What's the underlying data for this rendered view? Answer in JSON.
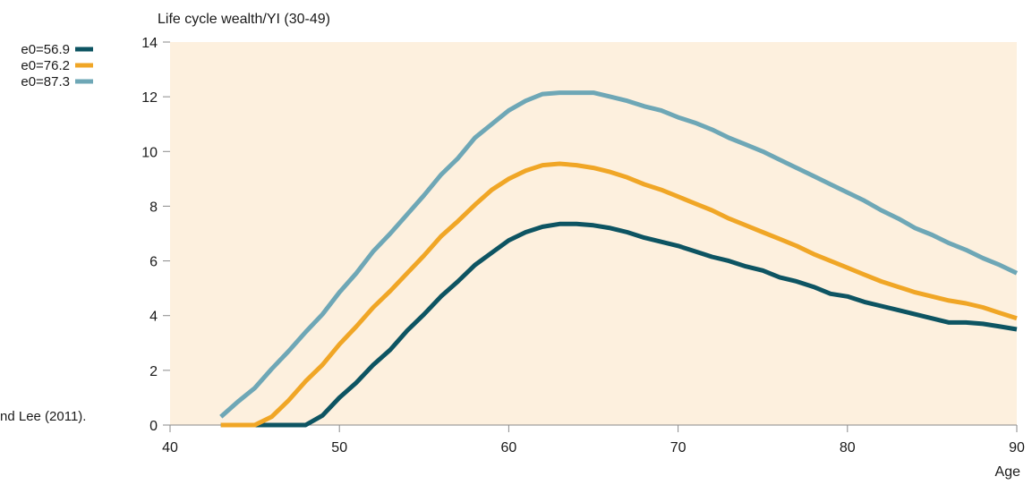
{
  "chart_data": {
    "type": "line",
    "ylabel": "Life cycle wealth/YI (30-49)",
    "xlabel": "Age",
    "xlim": [
      40,
      90
    ],
    "ylim": [
      0,
      14
    ],
    "xticks": [
      40,
      50,
      60,
      70,
      80,
      90
    ],
    "yticks": [
      0,
      2,
      4,
      6,
      8,
      10,
      12,
      14
    ],
    "plot_background": "#fdf0de",
    "legend_position": "top-left, outside plot",
    "note_fragment": "nd Lee (2011).",
    "series": [
      {
        "name": "e0=56.9",
        "color": "#0d5462",
        "x": [
          43,
          44,
          45,
          46,
          47,
          48,
          49,
          50,
          51,
          52,
          53,
          54,
          55,
          56,
          57,
          58,
          59,
          60,
          61,
          62,
          63,
          64,
          65,
          66,
          67,
          68,
          69,
          70,
          71,
          72,
          73,
          74,
          75,
          76,
          77,
          78,
          79,
          80,
          81,
          82,
          83,
          84,
          85,
          86,
          87,
          88,
          89,
          90
        ],
        "y": [
          0,
          0,
          0,
          0,
          0,
          0,
          0.35,
          1.0,
          1.55,
          2.2,
          2.75,
          3.45,
          4.05,
          4.7,
          5.25,
          5.85,
          6.3,
          6.75,
          7.05,
          7.25,
          7.35,
          7.35,
          7.3,
          7.2,
          7.05,
          6.85,
          6.7,
          6.55,
          6.35,
          6.15,
          6.0,
          5.8,
          5.65,
          5.4,
          5.25,
          5.05,
          4.8,
          4.7,
          4.5,
          4.35,
          4.2,
          4.05,
          3.9,
          3.75,
          3.75,
          3.7,
          3.6,
          3.5
        ]
      },
      {
        "name": "e0=76.2",
        "color": "#f0a626",
        "x": [
          43,
          44,
          45,
          46,
          47,
          48,
          49,
          50,
          51,
          52,
          53,
          54,
          55,
          56,
          57,
          58,
          59,
          60,
          61,
          62,
          63,
          64,
          65,
          66,
          67,
          68,
          69,
          70,
          71,
          72,
          73,
          74,
          75,
          76,
          77,
          78,
          79,
          80,
          81,
          82,
          83,
          84,
          85,
          86,
          87,
          88,
          89,
          90
        ],
        "y": [
          0,
          0,
          0,
          0.3,
          0.9,
          1.6,
          2.2,
          2.95,
          3.6,
          4.3,
          4.9,
          5.55,
          6.2,
          6.9,
          7.45,
          8.05,
          8.6,
          9.0,
          9.3,
          9.5,
          9.55,
          9.5,
          9.4,
          9.25,
          9.05,
          8.8,
          8.6,
          8.35,
          8.1,
          7.85,
          7.55,
          7.3,
          7.05,
          6.8,
          6.55,
          6.25,
          6.0,
          5.75,
          5.5,
          5.25,
          5.05,
          4.85,
          4.7,
          4.55,
          4.45,
          4.3,
          4.1,
          3.9
        ]
      },
      {
        "name": "e0=87.3",
        "color": "#6ea7b6",
        "x": [
          43,
          44,
          45,
          46,
          47,
          48,
          49,
          50,
          51,
          52,
          53,
          54,
          55,
          56,
          57,
          58,
          59,
          60,
          61,
          62,
          63,
          64,
          65,
          66,
          67,
          68,
          69,
          70,
          71,
          72,
          73,
          74,
          75,
          76,
          77,
          78,
          79,
          80,
          81,
          82,
          83,
          84,
          85,
          86,
          87,
          88,
          89,
          90
        ],
        "y": [
          0.3,
          0.85,
          1.35,
          2.05,
          2.7,
          3.4,
          4.05,
          4.85,
          5.55,
          6.35,
          7.0,
          7.7,
          8.4,
          9.15,
          9.75,
          10.5,
          11.0,
          11.5,
          11.85,
          12.1,
          12.15,
          12.15,
          12.15,
          12.0,
          11.85,
          11.65,
          11.5,
          11.25,
          11.05,
          10.8,
          10.5,
          10.25,
          10.0,
          9.7,
          9.4,
          9.1,
          8.8,
          8.5,
          8.2,
          7.85,
          7.55,
          7.2,
          6.95,
          6.65,
          6.4,
          6.1,
          5.85,
          5.55
        ]
      }
    ]
  }
}
